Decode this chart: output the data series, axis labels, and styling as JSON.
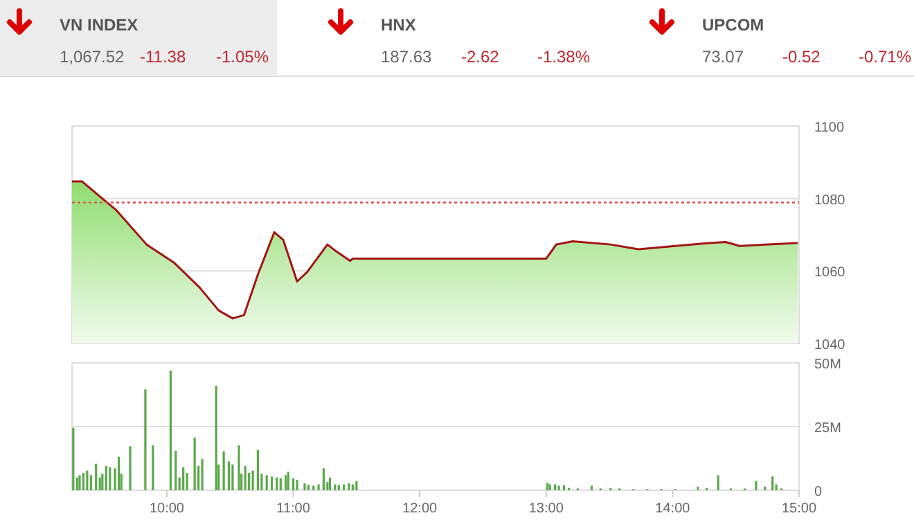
{
  "chart_data": [
    {
      "type": "other",
      "annotations": [
        "VN INDEX",
        "1,067.52",
        "-11.38",
        "-1.05%",
        "HNX",
        "187.63",
        "-2.62",
        "-1.38%",
        "UPCOM",
        "73.07",
        "-0.52",
        "-0.71%"
      ]
    },
    {
      "type": "area",
      "tick_labels": "y",
      "grid": "y",
      "xlim": [
        9.25,
        15
      ],
      "ylim": [
        1040,
        1100
      ],
      "yticks": [
        1040,
        1060,
        1080,
        1100
      ],
      "ref_lines": [
        {
          "axis": "y",
          "value": 1078.9,
          "color": "#e0464a",
          "line_style": "dotted"
        }
      ],
      "series": [
        {
          "color": "#a31515",
          "x": [
            9.25,
            9.33,
            9.51,
            9.6,
            9.84,
            10.06,
            10.26,
            10.41,
            10.52,
            10.61,
            10.72,
            10.85,
            10.92,
            11.03,
            11.11,
            11.27,
            11.34,
            11.45,
            11.47,
            13.0,
            13.08,
            13.21,
            13.51,
            13.73,
            14.02,
            14.29,
            14.42,
            14.53,
            14.73,
            14.99
          ],
          "values": [
            1084.7,
            1084.7,
            1079.4,
            1076.8,
            1067.3,
            1062.2,
            1055.4,
            1049.1,
            1046.9,
            1047.8,
            1059.0,
            1070.7,
            1068.6,
            1057.1,
            1059.7,
            1067.3,
            1065.4,
            1062.8,
            1063.4,
            1063.4,
            1067.3,
            1068.2,
            1067.3,
            1066.0,
            1066.9,
            1067.7,
            1068.0,
            1066.9,
            1067.3,
            1067.7
          ]
        }
      ]
    },
    {
      "type": "bar",
      "grid": "y",
      "xlim": [
        9.25,
        15
      ],
      "xticks": [
        {
          "value": 10,
          "label": "10:00"
        },
        {
          "value": 11,
          "label": "11:00"
        },
        {
          "value": 12,
          "label": "12:00"
        },
        {
          "value": 13,
          "label": "13:00"
        },
        {
          "value": 14,
          "label": "14:00"
        },
        {
          "value": 15,
          "label": "15:00"
        }
      ],
      "ylim": [
        0,
        50
      ],
      "yticks": [
        0,
        {
          "value": 25,
          "label": "25M"
        },
        {
          "value": 50,
          "label": "50M"
        }
      ],
      "series": [
        {
          "color": "#5aa84a",
          "x": [
            9.26,
            9.29,
            9.31,
            9.34,
            9.37,
            9.4,
            9.44,
            9.47,
            9.49,
            9.52,
            9.55,
            9.59,
            9.62,
            9.64,
            9.71,
            9.83,
            9.89,
            10.03,
            10.07,
            10.1,
            10.13,
            10.16,
            10.22,
            10.25,
            10.28,
            10.39,
            10.41,
            10.45,
            10.49,
            10.52,
            10.57,
            10.59,
            10.62,
            10.65,
            10.68,
            10.72,
            10.75,
            10.79,
            10.83,
            10.87,
            10.9,
            10.94,
            10.96,
            11.0,
            11.03,
            11.09,
            11.12,
            11.16,
            11.2,
            11.24,
            11.27,
            11.29,
            11.33,
            11.36,
            11.4,
            11.44,
            11.47,
            11.5,
            13.01,
            13.03,
            13.07,
            13.1,
            13.14,
            13.18,
            13.25,
            13.36,
            13.43,
            13.51,
            13.58,
            13.69,
            13.8,
            13.91,
            14.02,
            14.2,
            14.27,
            14.36,
            14.46,
            14.57,
            14.66,
            14.73,
            14.79,
            14.82,
            14.86
          ],
          "values": [
            24.5,
            5.0,
            5.9,
            6.8,
            7.7,
            5.9,
            10.4,
            5.0,
            6.5,
            9.5,
            9.0,
            8.6,
            13.1,
            6.5,
            17.3,
            39.6,
            17.6,
            46.9,
            15.5,
            5.0,
            9.0,
            6.8,
            20.7,
            9.5,
            12.2,
            41.0,
            10.1,
            15.3,
            11.3,
            10.1,
            17.6,
            6.5,
            9.5,
            6.8,
            7.7,
            15.8,
            6.5,
            5.9,
            5.4,
            5.0,
            4.7,
            5.9,
            7.2,
            4.7,
            4.1,
            2.7,
            2.2,
            1.8,
            2.3,
            8.6,
            3.2,
            5.0,
            2.3,
            2.0,
            2.3,
            2.7,
            2.3,
            3.6,
            2.9,
            2.3,
            2.3,
            1.8,
            2.0,
            0.9,
            0.7,
            1.8,
            0.7,
            0.9,
            0.7,
            0.5,
            0.5,
            0.5,
            0.5,
            1.4,
            0.9,
            5.9,
            0.7,
            0.7,
            3.6,
            1.4,
            5.4,
            2.3,
            0.7
          ]
        }
      ]
    }
  ]
}
